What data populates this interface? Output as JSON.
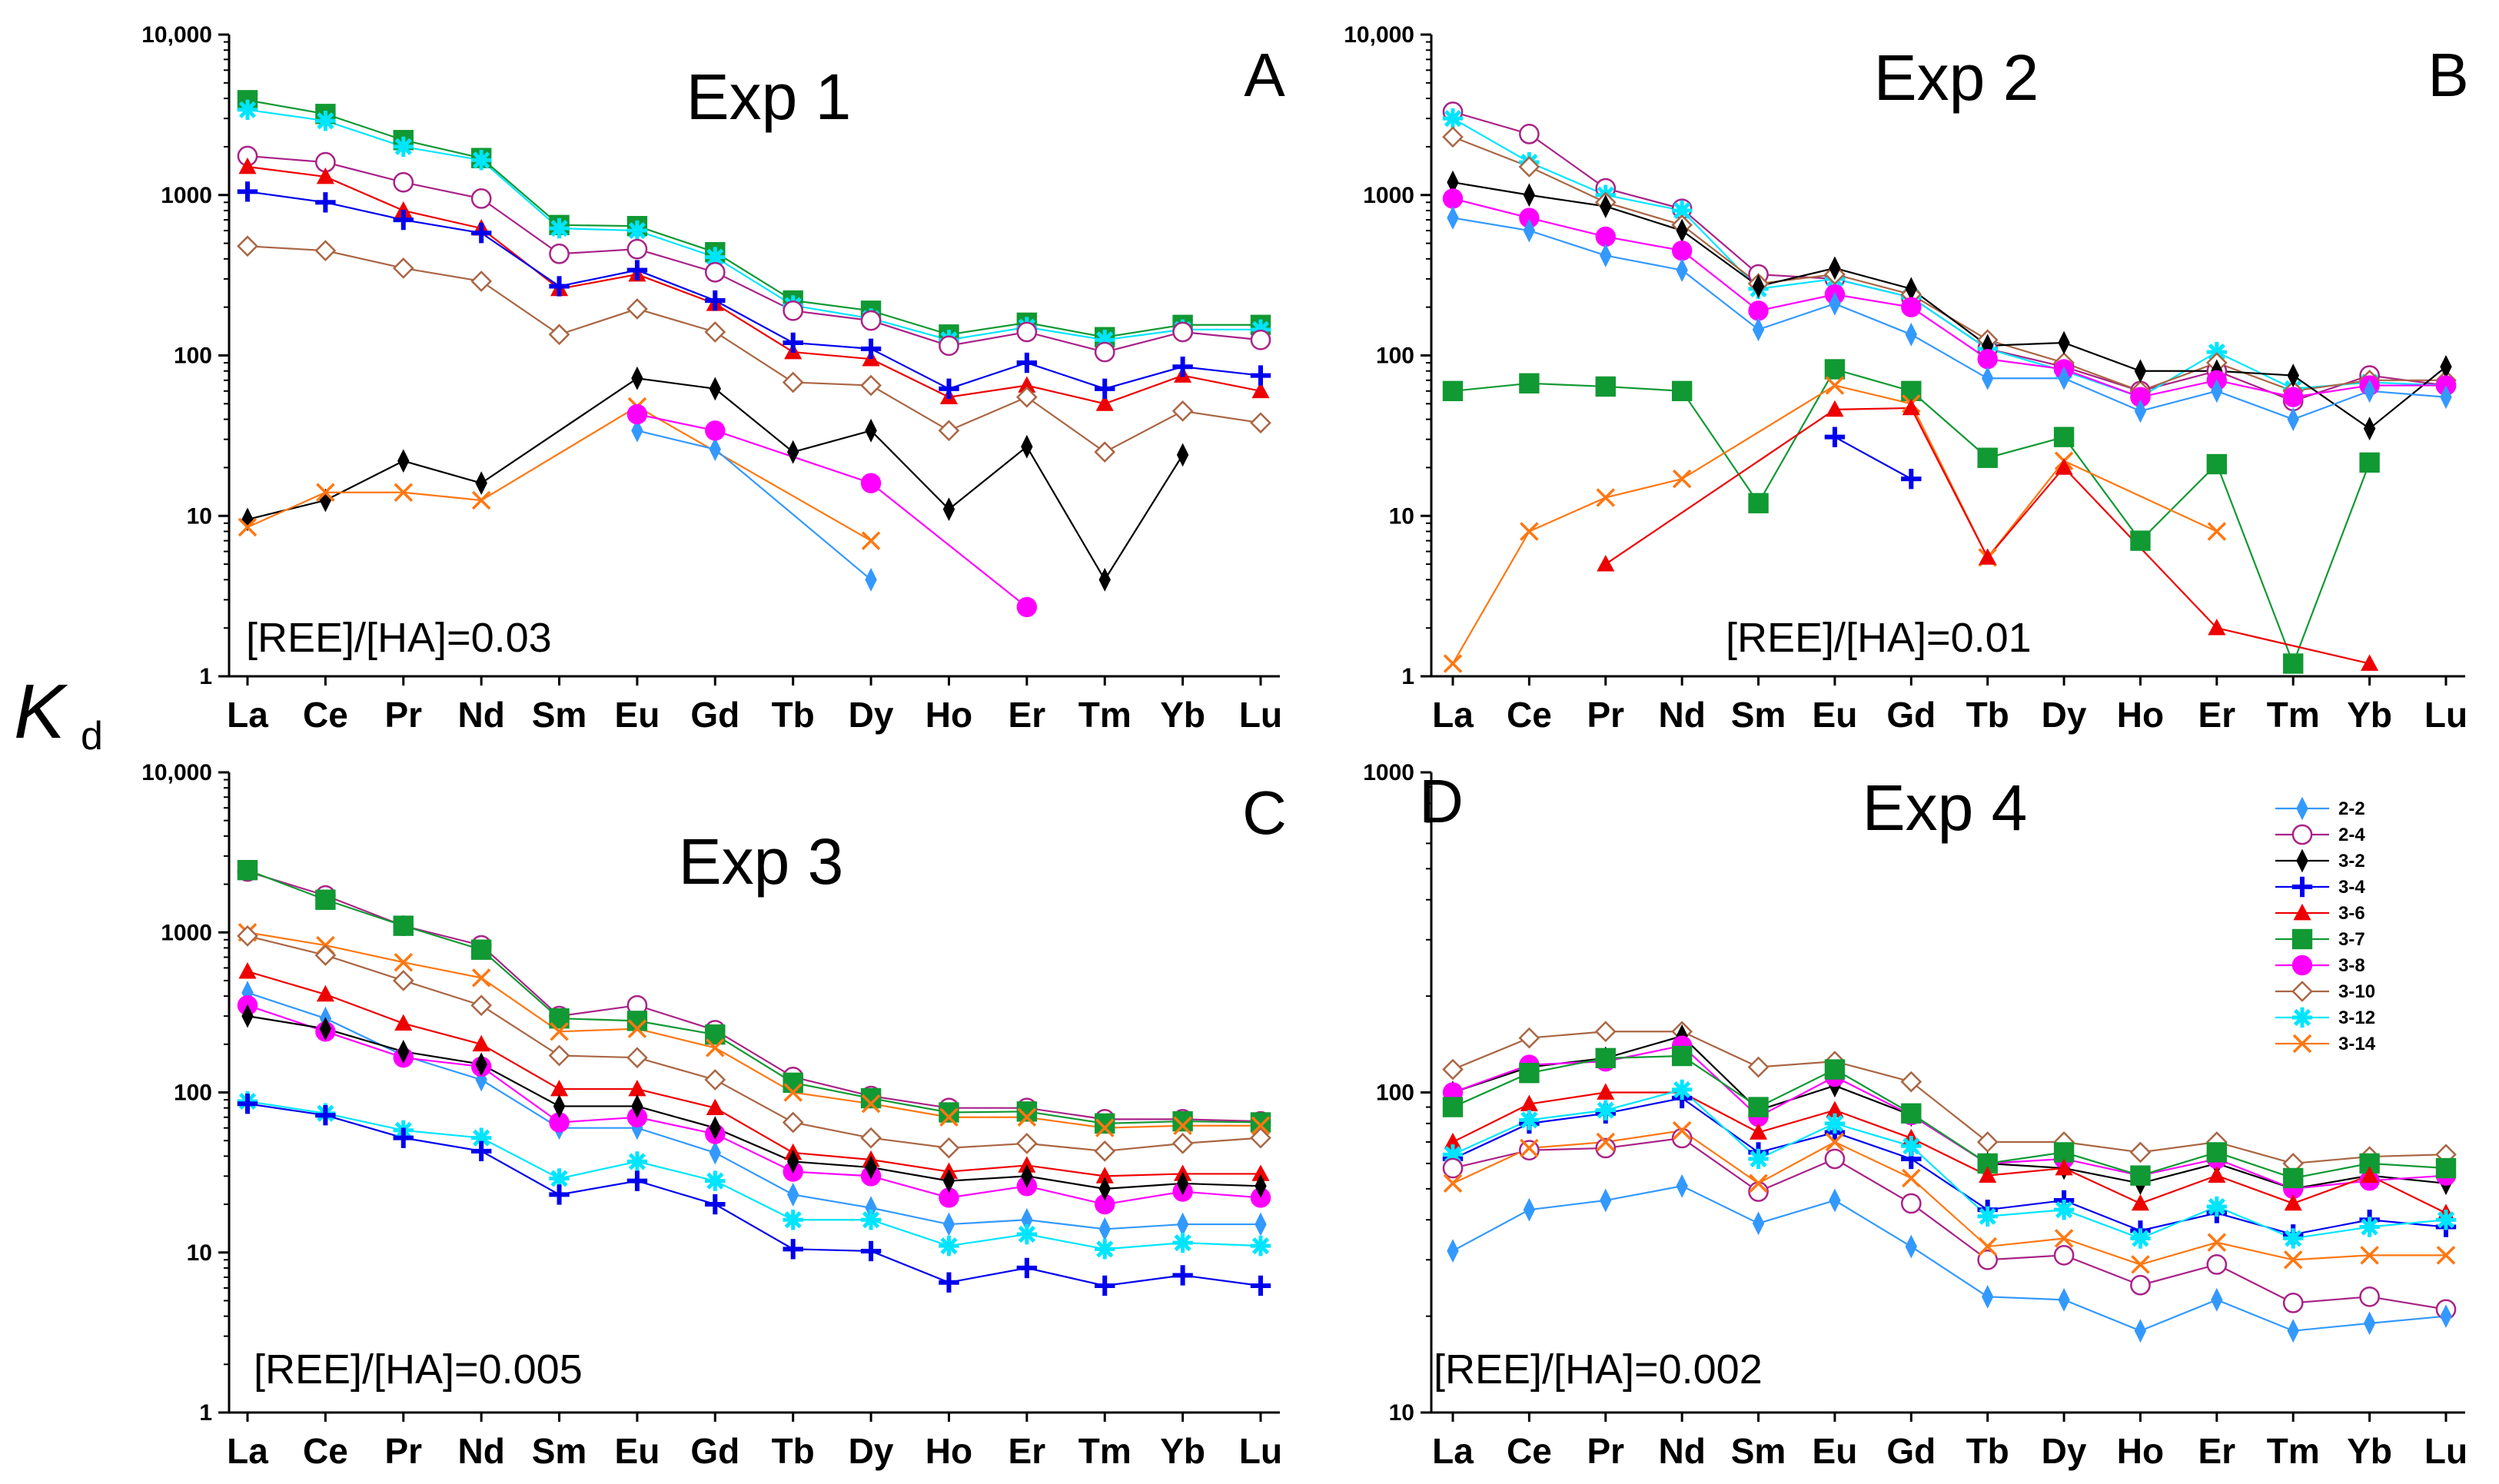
{
  "figure": {
    "y_axis_label": "K",
    "y_axis_label_subscript": "d",
    "colors": {
      "2-2": "#3399FF",
      "2-4": "#AA2288",
      "3-2": "#000000",
      "3-4": "#0000EE",
      "3-6": "#EE0000",
      "3-7": "#119933",
      "3-8": "#FF00FF",
      "3-10": "#AA6644",
      "3-12": "#00E5FF",
      "3-14": "#FF7711"
    },
    "markers": {
      "2-2": "diamond-filled",
      "2-4": "circle-open",
      "3-2": "diamond-filled",
      "3-4": "plus",
      "3-6": "triangle-filled",
      "3-7": "square-filled",
      "3-8": "circle-filled",
      "3-10": "diamond-open",
      "3-12": "star",
      "3-14": "x"
    },
    "legend": [
      "2-2",
      "2-4",
      "3-2",
      "3-4",
      "3-6",
      "3-7",
      "3-8",
      "3-10",
      "3-12",
      "3-14"
    ]
  },
  "chart_data": [
    {
      "type": "line",
      "id": "A",
      "title": "Exp 1",
      "panel_label": "A",
      "annotation": "[REE]/[HA]=0.03",
      "yscale": "log",
      "ylim": [
        1,
        10000
      ],
      "yticks": [
        1,
        10,
        100,
        1000,
        10000
      ],
      "ytick_labels": [
        "1",
        "10",
        "100",
        "1000",
        "10,000"
      ],
      "categories": [
        "La",
        "Ce",
        "Pr",
        "Nd",
        "Sm",
        "Eu",
        "Gd",
        "Tb",
        "Dy",
        "Ho",
        "Er",
        "Tm",
        "Yb",
        "Lu"
      ],
      "series": [
        {
          "name": "3-7",
          "values": [
            3900,
            3200,
            2200,
            1700,
            650,
            640,
            440,
            220,
            190,
            135,
            160,
            130,
            155,
            155
          ]
        },
        {
          "name": "3-12",
          "values": [
            3400,
            2900,
            2000,
            1650,
            620,
            600,
            410,
            205,
            170,
            125,
            150,
            125,
            145,
            145
          ]
        },
        {
          "name": "2-4",
          "values": [
            1750,
            1600,
            1200,
            950,
            430,
            460,
            330,
            190,
            165,
            115,
            140,
            105,
            140,
            125
          ]
        },
        {
          "name": "3-6",
          "values": [
            1500,
            1300,
            800,
            620,
            260,
            320,
            210,
            105,
            95,
            55,
            65,
            50,
            75,
            60
          ]
        },
        {
          "name": "3-4",
          "values": [
            1050,
            900,
            700,
            580,
            270,
            340,
            220,
            120,
            110,
            62,
            90,
            62,
            85,
            75
          ]
        },
        {
          "name": "3-10",
          "values": [
            480,
            450,
            350,
            290,
            135,
            195,
            140,
            68,
            65,
            34,
            55,
            25,
            45,
            38
          ]
        },
        {
          "name": "3-2",
          "values": [
            9.5,
            12.5,
            22,
            16,
            null,
            72,
            62,
            25,
            34,
            11,
            27,
            4,
            24,
            null
          ]
        },
        {
          "name": "3-14",
          "values": [
            8.5,
            14,
            14,
            12.5,
            null,
            48,
            null,
            null,
            7,
            null,
            null,
            null,
            null,
            null
          ]
        },
        {
          "name": "2-2",
          "values": [
            null,
            null,
            null,
            null,
            null,
            34,
            26,
            null,
            4,
            null,
            null,
            null,
            null,
            null
          ]
        },
        {
          "name": "3-8",
          "values": [
            null,
            null,
            null,
            null,
            null,
            43,
            34,
            null,
            16,
            null,
            2.7,
            null,
            null,
            null
          ]
        }
      ]
    },
    {
      "type": "line",
      "id": "B",
      "title": "Exp 2",
      "panel_label": "B",
      "annotation": "[REE]/[HA]=0.01",
      "yscale": "log",
      "ylim": [
        1,
        10000
      ],
      "yticks": [
        1,
        10,
        100,
        1000,
        10000
      ],
      "ytick_labels": [
        "1",
        "10",
        "100",
        "1000",
        "10,000"
      ],
      "categories": [
        "La",
        "Ce",
        "Pr",
        "Nd",
        "Sm",
        "Eu",
        "Gd",
        "Tb",
        "Dy",
        "Ho",
        "Er",
        "Tm",
        "Yb",
        "Lu"
      ],
      "series": [
        {
          "name": "2-4",
          "values": [
            3300,
            2400,
            1100,
            820,
            320,
            300,
            230,
            110,
            85,
            60,
            80,
            52,
            75,
            65
          ]
        },
        {
          "name": "3-12",
          "values": [
            3000,
            1600,
            1000,
            800,
            260,
            300,
            230,
            110,
            80,
            55,
            105,
            62,
            68,
            65
          ]
        },
        {
          "name": "3-10",
          "values": [
            2300,
            1500,
            900,
            650,
            280,
            320,
            240,
            125,
            90,
            60,
            90,
            60,
            70,
            70
          ]
        },
        {
          "name": "3-2",
          "values": [
            1200,
            1000,
            850,
            600,
            270,
            350,
            260,
            115,
            120,
            80,
            80,
            75,
            35,
            85
          ]
        },
        {
          "name": "3-8",
          "values": [
            950,
            720,
            550,
            450,
            190,
            240,
            200,
            95,
            82,
            55,
            70,
            55,
            65,
            65
          ]
        },
        {
          "name": "2-2",
          "values": [
            720,
            600,
            420,
            340,
            145,
            210,
            135,
            72,
            72,
            45,
            60,
            40,
            60,
            55
          ]
        },
        {
          "name": "3-7",
          "values": [
            60,
            67,
            64,
            60,
            12,
            82,
            60,
            23,
            31,
            7,
            21,
            1.2,
            21.5,
            null
          ]
        },
        {
          "name": "3-14",
          "values": [
            1.2,
            8,
            13,
            17,
            null,
            65,
            50,
            5.5,
            22,
            null,
            8,
            null,
            null,
            null
          ]
        },
        {
          "name": "3-6",
          "values": [
            null,
            null,
            5,
            null,
            null,
            46,
            47,
            5.5,
            20,
            null,
            2,
            null,
            1.2,
            null
          ]
        },
        {
          "name": "3-4",
          "values": [
            null,
            null,
            null,
            null,
            null,
            31,
            17,
            null,
            null,
            null,
            null,
            null,
            null,
            null
          ]
        }
      ]
    },
    {
      "type": "line",
      "id": "C",
      "title": "Exp 3",
      "panel_label": "C",
      "annotation": "[REE]/[HA]=0.005",
      "yscale": "log",
      "ylim": [
        1,
        10000
      ],
      "yticks": [
        1,
        10,
        100,
        1000,
        10000
      ],
      "ytick_labels": [
        "1",
        "10",
        "100",
        "1000",
        "10,000"
      ],
      "categories": [
        "La",
        "Ce",
        "Pr",
        "Nd",
        "Sm",
        "Eu",
        "Gd",
        "Tb",
        "Dy",
        "Ho",
        "Er",
        "Tm",
        "Yb",
        "Lu"
      ],
      "series": [
        {
          "name": "2-4",
          "values": [
            2400,
            1700,
            1100,
            830,
            300,
            350,
            245,
            125,
            95,
            80,
            80,
            68,
            68,
            66
          ]
        },
        {
          "name": "3-7",
          "values": [
            2450,
            1600,
            1100,
            780,
            290,
            280,
            230,
            115,
            92,
            75,
            76,
            64,
            66,
            65
          ]
        },
        {
          "name": "3-14",
          "values": [
            1000,
            830,
            650,
            520,
            240,
            250,
            190,
            100,
            85,
            70,
            70,
            60,
            62,
            62
          ]
        },
        {
          "name": "3-10",
          "values": [
            950,
            720,
            500,
            350,
            170,
            165,
            120,
            65,
            52,
            45,
            48,
            43,
            48,
            52
          ]
        },
        {
          "name": "3-6",
          "values": [
            570,
            410,
            270,
            200,
            105,
            105,
            80,
            42,
            38,
            32,
            35,
            30,
            31,
            31
          ]
        },
        {
          "name": "2-2",
          "values": [
            420,
            290,
            170,
            120,
            60,
            60,
            42,
            23,
            19,
            15,
            16,
            14,
            15,
            15
          ]
        },
        {
          "name": "3-8",
          "values": [
            350,
            240,
            165,
            145,
            65,
            70,
            55,
            32,
            30,
            22,
            26,
            20,
            24,
            22
          ]
        },
        {
          "name": "3-2",
          "values": [
            300,
            250,
            180,
            150,
            82,
            82,
            60,
            37,
            34,
            28,
            30,
            25,
            27,
            26
          ]
        },
        {
          "name": "3-12",
          "values": [
            88,
            74,
            58,
            52,
            29,
            37,
            28,
            16,
            16,
            11,
            13,
            10.5,
            11.5,
            11
          ]
        },
        {
          "name": "3-4",
          "values": [
            85,
            72,
            52,
            43,
            23,
            28,
            20,
            10.5,
            10.2,
            6.5,
            8,
            6.2,
            7.2,
            6.2
          ]
        }
      ]
    },
    {
      "type": "line",
      "id": "D",
      "title": "Exp 4",
      "panel_label": "D",
      "annotation": "[REE]/[HA]=0.002",
      "yscale": "log",
      "ylim": [
        10,
        1000
      ],
      "yticks": [
        10,
        100,
        1000
      ],
      "ytick_labels": [
        "10",
        "100",
        "1000"
      ],
      "categories": [
        "La",
        "Ce",
        "Pr",
        "Nd",
        "Sm",
        "Eu",
        "Gd",
        "Tb",
        "Dy",
        "Ho",
        "Er",
        "Tm",
        "Yb",
        "Lu"
      ],
      "series": [
        {
          "name": "3-10",
          "values": [
            118,
            148,
            155,
            155,
            120,
            125,
            108,
            70,
            70,
            65,
            70,
            60,
            63,
            64
          ]
        },
        {
          "name": "3-2",
          "values": [
            100,
            120,
            128,
            150,
            88,
            105,
            85,
            60,
            58,
            52,
            60,
            50,
            55,
            52
          ]
        },
        {
          "name": "3-8",
          "values": [
            100,
            122,
            125,
            140,
            84,
            112,
            85,
            60,
            62,
            55,
            62,
            50,
            53,
            55
          ]
        },
        {
          "name": "3-7",
          "values": [
            90,
            115,
            128,
            130,
            90,
            118,
            86,
            60,
            65,
            55,
            65,
            54,
            60,
            58
          ]
        },
        {
          "name": "3-6",
          "values": [
            70,
            92,
            100,
            100,
            75,
            88,
            72,
            55,
            58,
            45,
            55,
            45,
            55,
            42
          ]
        },
        {
          "name": "3-4",
          "values": [
            62,
            80,
            86,
            96,
            65,
            75,
            62,
            43,
            46,
            37,
            42,
            36,
            40,
            38
          ]
        },
        {
          "name": "3-12",
          "values": [
            64,
            82,
            88,
            102,
            62,
            80,
            68,
            41,
            43,
            35,
            44,
            35,
            38,
            40
          ]
        },
        {
          "name": "2-4",
          "values": [
            58,
            66,
            67,
            72,
            49,
            62,
            45,
            30,
            31,
            25,
            29,
            22,
            23,
            21
          ]
        },
        {
          "name": "3-14",
          "values": [
            52,
            67,
            70,
            76,
            52,
            70,
            54,
            33,
            35,
            29,
            34,
            30,
            31,
            31
          ]
        },
        {
          "name": "2-2",
          "values": [
            32,
            43,
            46,
            51,
            39,
            46,
            33,
            23,
            22.5,
            18,
            22.5,
            18,
            19,
            20
          ]
        }
      ]
    }
  ]
}
